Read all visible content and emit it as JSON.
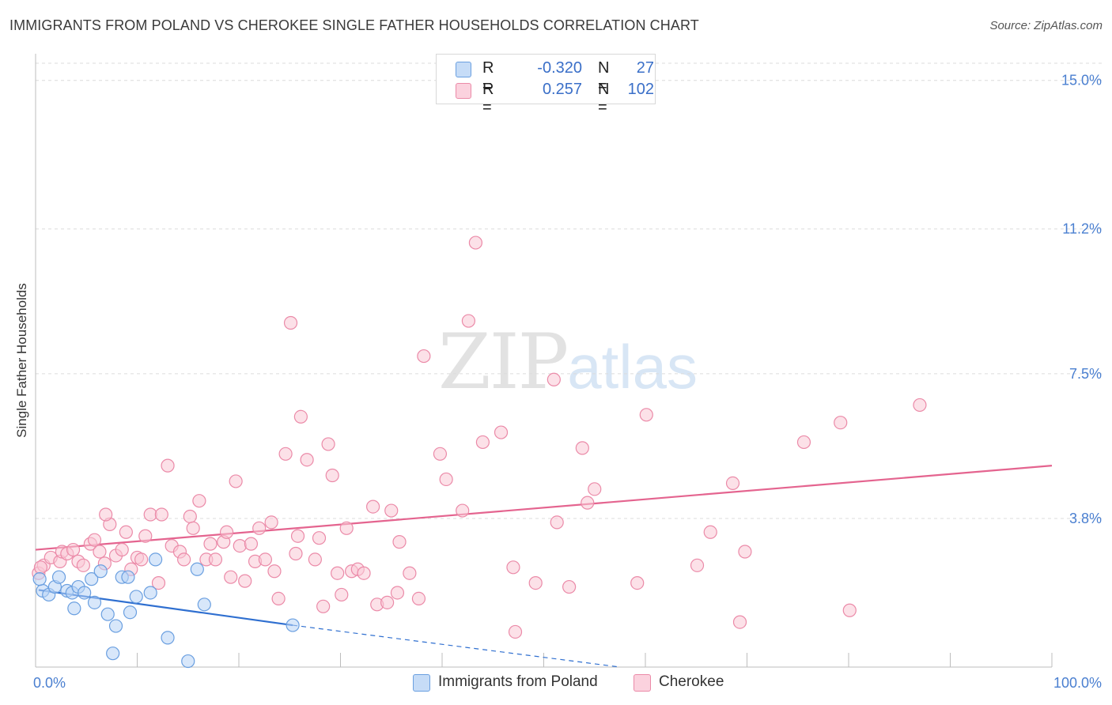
{
  "header": {
    "title": "IMMIGRANTS FROM POLAND VS CHEROKEE SINGLE FATHER HOUSEHOLDS CORRELATION CHART",
    "source": "Source: ZipAtlas.com"
  },
  "watermark": {
    "zip": "ZIP",
    "atlas": "atlas"
  },
  "legend": {
    "rows": [
      {
        "r_label": "R =",
        "r_value": "-0.320",
        "n_label": "N =",
        "n_value": "27"
      },
      {
        "r_label": "R =",
        "r_value": "0.257",
        "n_label": "N =",
        "n_value": "102"
      }
    ]
  },
  "bottom_legend": [
    "Immigrants from Poland",
    "Cherokee"
  ],
  "colors": {
    "poland_fill": "#b8d4f5",
    "poland_stroke": "#6a9fe0",
    "poland_line": "#2f6fd0",
    "cherokee_fill": "#f9c8d6",
    "cherokee_stroke": "#eb8aa8",
    "cherokee_line": "#e4648f",
    "tick_text": "#4a7fd0",
    "grid": "#dcdcdc"
  },
  "chart_data": {
    "type": "scatter",
    "title": "IMMIGRANTS FROM POLAND VS CHEROKEE SINGLE FATHER HOUSEHOLDS CORRELATION CHART",
    "xlabel": "",
    "ylabel": "Single Father Households",
    "xlim": [
      0,
      100
    ],
    "ylim": [
      0,
      15.6
    ],
    "x_tick_labels": [
      "0.0%",
      "100.0%"
    ],
    "y_ticks": [
      3.8,
      7.5,
      11.2,
      15.0
    ],
    "y_tick_labels": [
      "3.8%",
      "7.5%",
      "11.2%",
      "15.0%"
    ],
    "series": [
      {
        "name": "Immigrants from Poland",
        "r": -0.32,
        "n": 27,
        "trend": {
          "x0": 0.3,
          "y0": 1.97,
          "x1": 25.3,
          "y1": 1.07,
          "dash_to_x": 57.5,
          "dash_to_y": 0.0
        },
        "points": [
          [
            0.7,
            1.95
          ],
          [
            1.3,
            1.85
          ],
          [
            1.9,
            2.05
          ],
          [
            2.3,
            2.3
          ],
          [
            3.1,
            1.95
          ],
          [
            3.6,
            1.9
          ],
          [
            3.8,
            1.5
          ],
          [
            4.2,
            2.05
          ],
          [
            4.8,
            1.9
          ],
          [
            5.5,
            2.25
          ],
          [
            5.8,
            1.65
          ],
          [
            6.4,
            2.45
          ],
          [
            7.1,
            1.35
          ],
          [
            7.9,
            1.05
          ],
          [
            7.6,
            0.35
          ],
          [
            8.5,
            2.3
          ],
          [
            9.1,
            2.3
          ],
          [
            9.3,
            1.4
          ],
          [
            9.9,
            1.8
          ],
          [
            11.3,
            1.9
          ],
          [
            11.8,
            2.75
          ],
          [
            13.0,
            0.75
          ],
          [
            15.0,
            0.15
          ],
          [
            15.9,
            2.5
          ],
          [
            16.6,
            1.6
          ],
          [
            25.3,
            1.07
          ],
          [
            0.4,
            2.25
          ]
        ]
      },
      {
        "name": "Cherokee",
        "r": 0.257,
        "n": 102,
        "trend": {
          "x0": 0.0,
          "y0": 3.0,
          "x1": 100.0,
          "y1": 5.15
        },
        "points": [
          [
            0.3,
            2.4
          ],
          [
            0.8,
            2.6
          ],
          [
            1.5,
            2.8
          ],
          [
            2.4,
            2.7
          ],
          [
            2.6,
            2.95
          ],
          [
            3.1,
            2.9
          ],
          [
            3.7,
            3.0
          ],
          [
            4.2,
            2.7
          ],
          [
            4.7,
            2.6
          ],
          [
            5.4,
            3.15
          ],
          [
            5.8,
            3.25
          ],
          [
            6.3,
            2.95
          ],
          [
            6.8,
            2.65
          ],
          [
            7.3,
            3.65
          ],
          [
            7.9,
            2.85
          ],
          [
            8.5,
            3.0
          ],
          [
            8.9,
            3.45
          ],
          [
            9.4,
            2.5
          ],
          [
            10.0,
            2.8
          ],
          [
            10.4,
            2.75
          ],
          [
            10.8,
            3.35
          ],
          [
            11.3,
            3.9
          ],
          [
            12.1,
            2.15
          ],
          [
            12.4,
            3.9
          ],
          [
            13.0,
            5.15
          ],
          [
            13.4,
            3.1
          ],
          [
            14.2,
            2.95
          ],
          [
            14.6,
            2.75
          ],
          [
            15.2,
            3.85
          ],
          [
            15.5,
            3.55
          ],
          [
            16.1,
            4.25
          ],
          [
            16.8,
            2.75
          ],
          [
            17.2,
            3.15
          ],
          [
            17.7,
            2.75
          ],
          [
            18.5,
            3.2
          ],
          [
            18.8,
            3.45
          ],
          [
            19.2,
            2.3
          ],
          [
            19.7,
            4.75
          ],
          [
            20.1,
            3.1
          ],
          [
            20.6,
            2.2
          ],
          [
            21.2,
            3.15
          ],
          [
            21.6,
            2.7
          ],
          [
            22.0,
            3.55
          ],
          [
            22.6,
            2.75
          ],
          [
            23.2,
            3.7
          ],
          [
            23.5,
            2.45
          ],
          [
            23.9,
            1.75
          ],
          [
            24.6,
            5.45
          ],
          [
            25.1,
            8.8
          ],
          [
            25.6,
            2.9
          ],
          [
            25.8,
            3.35
          ],
          [
            26.1,
            6.4
          ],
          [
            26.7,
            5.3
          ],
          [
            27.5,
            2.75
          ],
          [
            27.9,
            3.3
          ],
          [
            28.3,
            1.55
          ],
          [
            28.8,
            5.7
          ],
          [
            29.2,
            4.9
          ],
          [
            29.7,
            2.4
          ],
          [
            30.1,
            1.85
          ],
          [
            30.6,
            3.55
          ],
          [
            31.1,
            2.45
          ],
          [
            31.7,
            2.5
          ],
          [
            32.3,
            2.4
          ],
          [
            33.2,
            4.1
          ],
          [
            33.6,
            1.6
          ],
          [
            34.6,
            1.65
          ],
          [
            35.0,
            4.0
          ],
          [
            35.6,
            1.9
          ],
          [
            35.8,
            3.2
          ],
          [
            36.8,
            2.4
          ],
          [
            37.7,
            1.75
          ],
          [
            38.2,
            7.95
          ],
          [
            39.8,
            5.45
          ],
          [
            40.4,
            4.8
          ],
          [
            42.0,
            4.0
          ],
          [
            42.6,
            8.85
          ],
          [
            43.3,
            10.85
          ],
          [
            44.0,
            5.75
          ],
          [
            45.8,
            6.0
          ],
          [
            47.0,
            2.55
          ],
          [
            47.2,
            0.9
          ],
          [
            49.2,
            2.15
          ],
          [
            51.0,
            7.35
          ],
          [
            51.3,
            3.7
          ],
          [
            52.5,
            2.05
          ],
          [
            53.8,
            5.6
          ],
          [
            54.3,
            4.2
          ],
          [
            55.0,
            4.55
          ],
          [
            59.2,
            2.15
          ],
          [
            60.1,
            6.45
          ],
          [
            66.4,
            3.45
          ],
          [
            65.1,
            2.6
          ],
          [
            68.6,
            4.7
          ],
          [
            69.3,
            1.15
          ],
          [
            69.8,
            2.95
          ],
          [
            75.6,
            5.75
          ],
          [
            79.2,
            6.25
          ],
          [
            80.1,
            1.45
          ],
          [
            87.0,
            6.7
          ],
          [
            0.5,
            2.55
          ],
          [
            6.9,
            3.9
          ]
        ]
      }
    ]
  }
}
